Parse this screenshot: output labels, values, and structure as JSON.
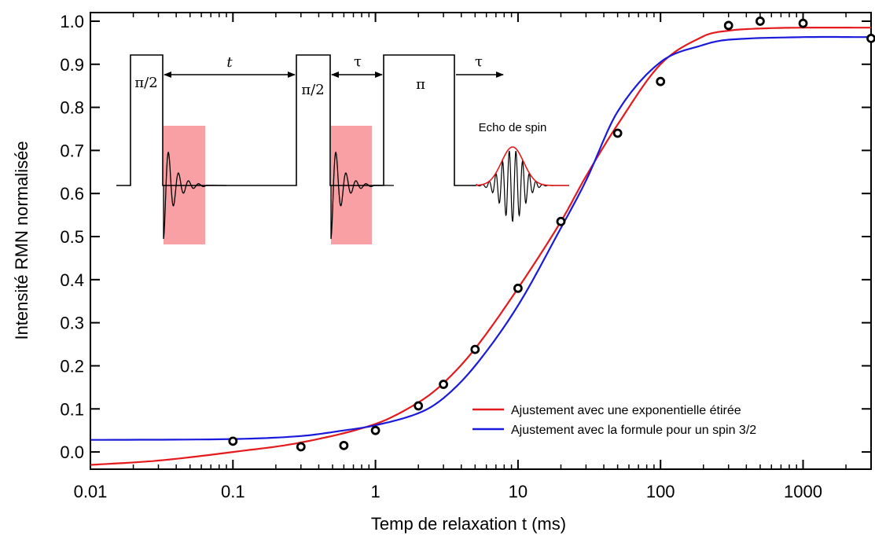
{
  "chart_data": {
    "type": "scatter",
    "title": "",
    "xlabel": "Temp de relaxation t (ms)",
    "ylabel": "Intensité RMN normalisée",
    "xscale": "log",
    "xlim": [
      0.01,
      3000
    ],
    "ylim": [
      -0.04,
      1.02
    ],
    "x_ticks": [
      0.01,
      0.1,
      1,
      10,
      100,
      1000
    ],
    "x_tick_labels": [
      "0.01",
      "0.1",
      "1",
      "10",
      "100",
      "1000"
    ],
    "y_ticks": [
      0.0,
      0.1,
      0.2,
      0.3,
      0.4,
      0.5,
      0.6,
      0.7,
      0.8,
      0.9,
      1.0
    ],
    "y_tick_labels": [
      "0.0",
      "0.1",
      "0.2",
      "0.3",
      "0.4",
      "0.5",
      "0.6",
      "0.7",
      "0.8",
      "0.9",
      "1.0"
    ],
    "grid": false,
    "legend_position": "bottom-right",
    "points": {
      "marker": "open-circle",
      "color": "#000000",
      "x": [
        0.1,
        0.3,
        0.6,
        1,
        2,
        3,
        5,
        10,
        20,
        50,
        100,
        300,
        500,
        1000,
        3000
      ],
      "y": [
        0.025,
        0.012,
        0.015,
        0.05,
        0.107,
        0.157,
        0.238,
        0.38,
        0.535,
        0.74,
        0.86,
        0.99,
        1.0,
        0.995,
        0.96
      ]
    },
    "series": [
      {
        "name": "Ajustement avec une exponentielle étirée",
        "color": "#e41a1c",
        "x": [
          0.01,
          0.03,
          0.1,
          0.3,
          1,
          2,
          3,
          5,
          10,
          20,
          30,
          50,
          100,
          200,
          300,
          500,
          1000,
          3000
        ],
        "y": [
          -0.03,
          -0.02,
          0.0,
          0.022,
          0.065,
          0.115,
          0.16,
          0.24,
          0.38,
          0.535,
          0.64,
          0.76,
          0.9,
          0.965,
          0.978,
          0.983,
          0.985,
          0.985
        ]
      },
      {
        "name": "Ajustement avec la formule pour un spin 3/2",
        "color": "#1a1adc",
        "x": [
          0.01,
          0.1,
          0.3,
          0.6,
          1,
          2,
          3,
          5,
          10,
          20,
          30,
          50,
          100,
          200,
          300,
          1000,
          3000
        ],
        "y": [
          0.028,
          0.03,
          0.037,
          0.05,
          0.062,
          0.09,
          0.125,
          0.2,
          0.34,
          0.52,
          0.63,
          0.79,
          0.905,
          0.945,
          0.957,
          0.963,
          0.963
        ]
      }
    ],
    "inset": {
      "pulse_labels": [
        "π/2",
        "π/2",
        "π"
      ],
      "delay_labels": [
        "t",
        "τ",
        "τ"
      ],
      "echo_label": "Echo de spin",
      "highlight_color": "#f8a0a4"
    }
  }
}
